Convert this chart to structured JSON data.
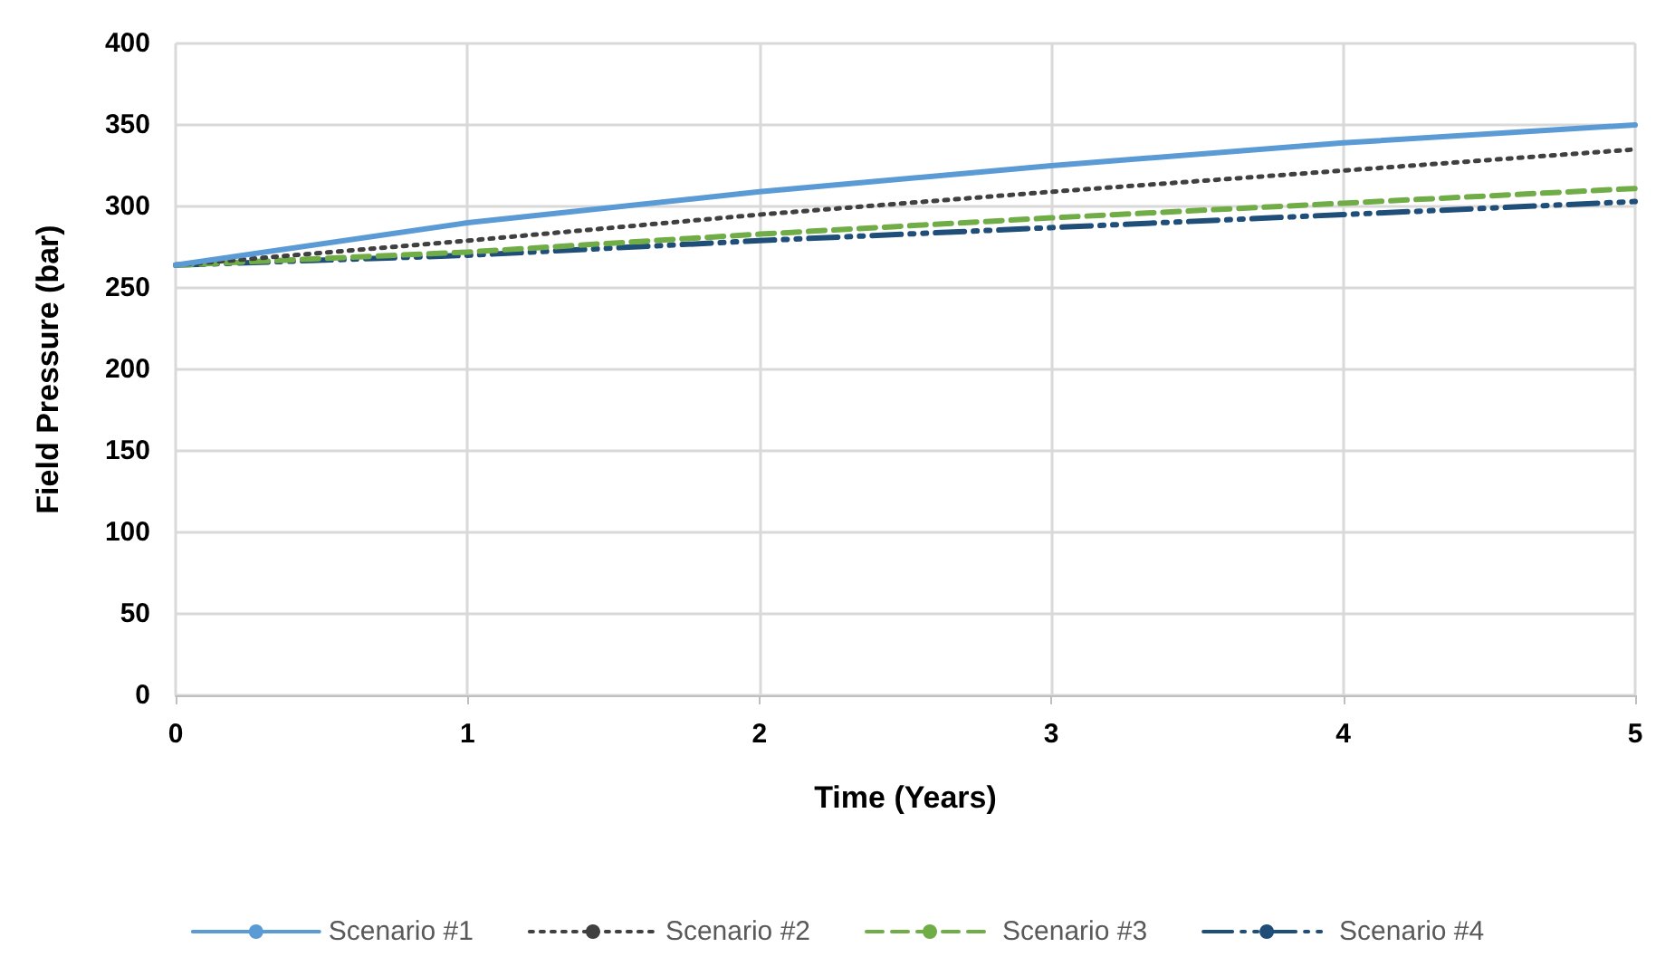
{
  "chart_data": {
    "type": "line",
    "xlabel": "Time (Years)",
    "ylabel": "Field Pressure (bar)",
    "x": [
      0,
      1,
      2,
      3,
      4,
      5
    ],
    "xlim": [
      0,
      5
    ],
    "xticks": [
      0,
      1,
      2,
      3,
      4,
      5
    ],
    "ylim": [
      0,
      400
    ],
    "yticks": [
      0,
      50,
      100,
      150,
      200,
      250,
      300,
      350,
      400
    ],
    "grid": true,
    "legend": "bottom",
    "marker": "none",
    "series": [
      {
        "name": "Scenario #1",
        "color": "#5b9bd5",
        "line_style": "solid",
        "values": [
          264,
          290,
          309,
          325,
          339,
          350
        ]
      },
      {
        "name": "Scenario #2",
        "color": "#404040",
        "line_style": "dotted",
        "values": [
          264,
          279,
          295,
          309,
          322,
          335
        ]
      },
      {
        "name": "Scenario #3",
        "color": "#70ad47",
        "line_style": "dashed",
        "values": [
          264,
          272,
          283,
          293,
          302,
          311
        ]
      },
      {
        "name": "Scenario #4",
        "color": "#1f4e79",
        "line_style": "dashdot",
        "values": [
          264,
          270,
          279,
          287,
          295,
          303
        ]
      }
    ]
  }
}
